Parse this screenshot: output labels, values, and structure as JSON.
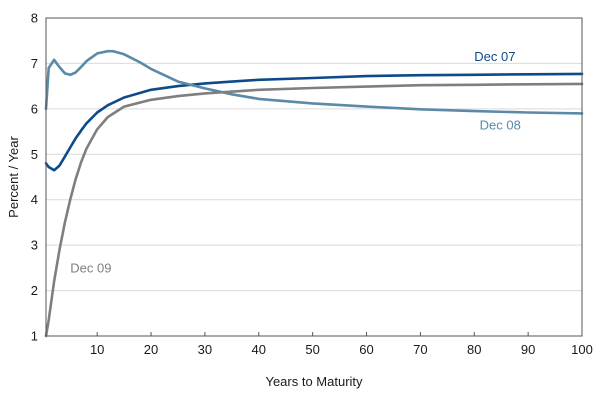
{
  "chart_data": {
    "type": "line",
    "title": "",
    "xlabel": "Years to Maturity",
    "ylabel": "Percent / Year",
    "xlim": [
      0.5,
      100
    ],
    "ylim": [
      1,
      8
    ],
    "xticks": [
      10,
      20,
      30,
      40,
      50,
      60,
      70,
      80,
      90,
      100
    ],
    "yticks": [
      1,
      2,
      3,
      4,
      5,
      6,
      7,
      8
    ],
    "grid": "horizontal",
    "legend": "inline-labels",
    "series": [
      {
        "name": "Dec 07",
        "color": "#0e4a8a",
        "label_anchor": [
          80,
          7.05
        ],
        "x": [
          0.5,
          1,
          2,
          3,
          4,
          5,
          6,
          7,
          8,
          10,
          12,
          15,
          20,
          25,
          30,
          35,
          40,
          50,
          60,
          70,
          80,
          90,
          100
        ],
        "y": [
          4.8,
          4.72,
          4.65,
          4.75,
          4.95,
          5.15,
          5.35,
          5.52,
          5.68,
          5.92,
          6.08,
          6.25,
          6.42,
          6.5,
          6.56,
          6.6,
          6.64,
          6.68,
          6.72,
          6.74,
          6.75,
          6.76,
          6.77
        ]
      },
      {
        "name": "Dec 08",
        "color": "#5b8aa8",
        "label_anchor": [
          81,
          5.55
        ],
        "x": [
          0.5,
          1,
          2,
          3,
          4,
          5,
          6,
          7,
          8,
          10,
          12,
          13,
          15,
          18,
          20,
          25,
          30,
          35,
          40,
          50,
          60,
          70,
          80,
          90,
          100
        ],
        "y": [
          6.0,
          6.9,
          7.08,
          6.92,
          6.78,
          6.75,
          6.8,
          6.92,
          7.05,
          7.22,
          7.27,
          7.27,
          7.2,
          7.02,
          6.88,
          6.6,
          6.45,
          6.32,
          6.22,
          6.12,
          6.05,
          5.99,
          5.95,
          5.92,
          5.9
        ]
      },
      {
        "name": "Dec 09",
        "color": "#7f7f7f",
        "label_anchor": [
          5,
          2.4
        ],
        "x": [
          0.5,
          1,
          2,
          3,
          4,
          5,
          6,
          7,
          8,
          10,
          12,
          15,
          20,
          25,
          30,
          40,
          50,
          60,
          70,
          80,
          90,
          100
        ],
        "y": [
          1.0,
          1.35,
          2.2,
          2.9,
          3.5,
          4.0,
          4.45,
          4.82,
          5.12,
          5.55,
          5.82,
          6.05,
          6.2,
          6.28,
          6.34,
          6.42,
          6.46,
          6.49,
          6.52,
          6.53,
          6.54,
          6.55
        ]
      }
    ]
  }
}
